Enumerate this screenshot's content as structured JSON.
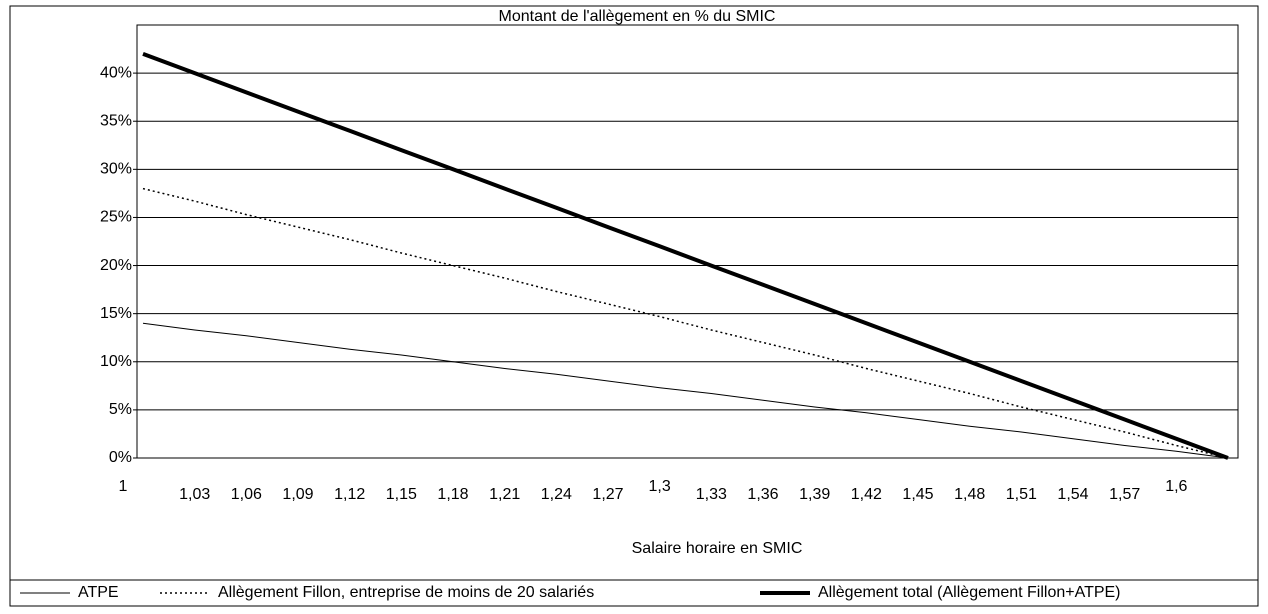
{
  "chart_data": {
    "type": "line",
    "title": "Montant de l'allègement en % du SMIC",
    "x_label": "Salaire horaire en SMIC",
    "categories": [
      "1",
      "1,03",
      "1,06",
      "1,09",
      "1,12",
      "1,15",
      "1,18",
      "1,21",
      "1,24",
      "1,27",
      "1,3",
      "1,33",
      "1,36",
      "1,39",
      "1,42",
      "1,45",
      "1,48",
      "1,51",
      "1,54",
      "1,57",
      "1,6",
      null
    ],
    "series": [
      {
        "name": "ATPE",
        "color": "#000000",
        "line_width": 1,
        "line_style": "solid",
        "values": [
          14,
          13.3,
          12.7,
          12,
          11.3,
          10.7,
          10,
          9.3,
          8.7,
          8,
          7.3,
          6.7,
          6,
          5.3,
          4.7,
          4,
          3.3,
          2.7,
          2,
          1.3,
          0.7,
          0
        ]
      },
      {
        "name": "Allègement Fillon, entreprise de moins de 20 salariés",
        "color": "#000000",
        "line_width": 1.5,
        "line_style": "dotted",
        "values": [
          28,
          26.7,
          25.3,
          24,
          22.7,
          21.3,
          20,
          18.7,
          17.3,
          16,
          14.7,
          13.3,
          12,
          10.7,
          9.3,
          8,
          6.7,
          5.3,
          4,
          2.7,
          1.3,
          0
        ]
      },
      {
        "name": "Allègement total (Allègement Fillon+ATPE)",
        "color": "#000000",
        "line_width": 4,
        "line_style": "solid",
        "values": [
          42,
          40,
          38,
          36,
          34,
          32,
          30,
          28,
          26,
          24,
          22,
          20,
          18,
          16,
          14,
          12,
          10,
          8,
          6,
          4,
          2,
          0
        ]
      }
    ],
    "ylim": [
      0,
      45
    ],
    "yticks": [
      {
        "value": 0,
        "label": "0%"
      },
      {
        "value": 5,
        "label": "5%"
      },
      {
        "value": 10,
        "label": "10%"
      },
      {
        "value": 15,
        "label": "15%"
      },
      {
        "value": 20,
        "label": "20%"
      },
      {
        "value": 25,
        "label": "25%"
      },
      {
        "value": 30,
        "label": "30%"
      },
      {
        "value": 35,
        "label": "35%"
      },
      {
        "value": 40,
        "label": "40%"
      }
    ],
    "grid": true,
    "legend": "bottom"
  }
}
